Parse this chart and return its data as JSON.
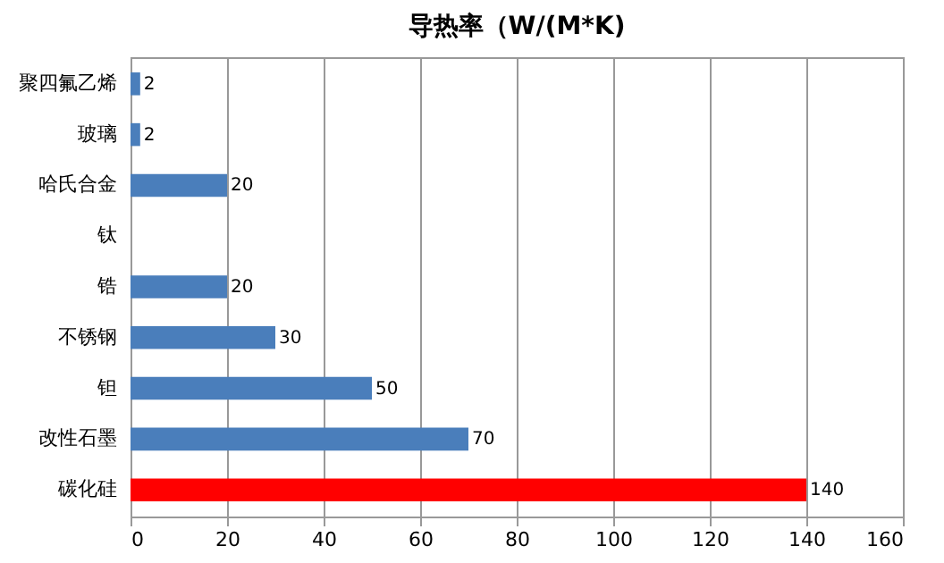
{
  "chart_data": {
    "type": "bar",
    "orientation": "horizontal",
    "title": "导热率（W/(M*K)",
    "categories": [
      "聚四氟乙烯",
      "玻璃",
      "哈氏合金",
      "钛",
      "锆",
      "不锈钢",
      "钽",
      "改性石墨",
      "碳化硅"
    ],
    "values": [
      2,
      2,
      20,
      null,
      20,
      30,
      50,
      70,
      140
    ],
    "value_labels": [
      "2",
      "2",
      "20",
      null,
      "20",
      "30",
      "50",
      "70",
      "140"
    ],
    "colors": [
      "#4a7ebb",
      "#4a7ebb",
      "#4a7ebb",
      "#4a7ebb",
      "#4a7ebb",
      "#4a7ebb",
      "#4a7ebb",
      "#4a7ebb",
      "#ff0000"
    ],
    "xlim": [
      0,
      160
    ],
    "xticks": [
      0,
      20,
      40,
      60,
      80,
      100,
      120,
      140,
      160
    ],
    "grid": "x"
  }
}
